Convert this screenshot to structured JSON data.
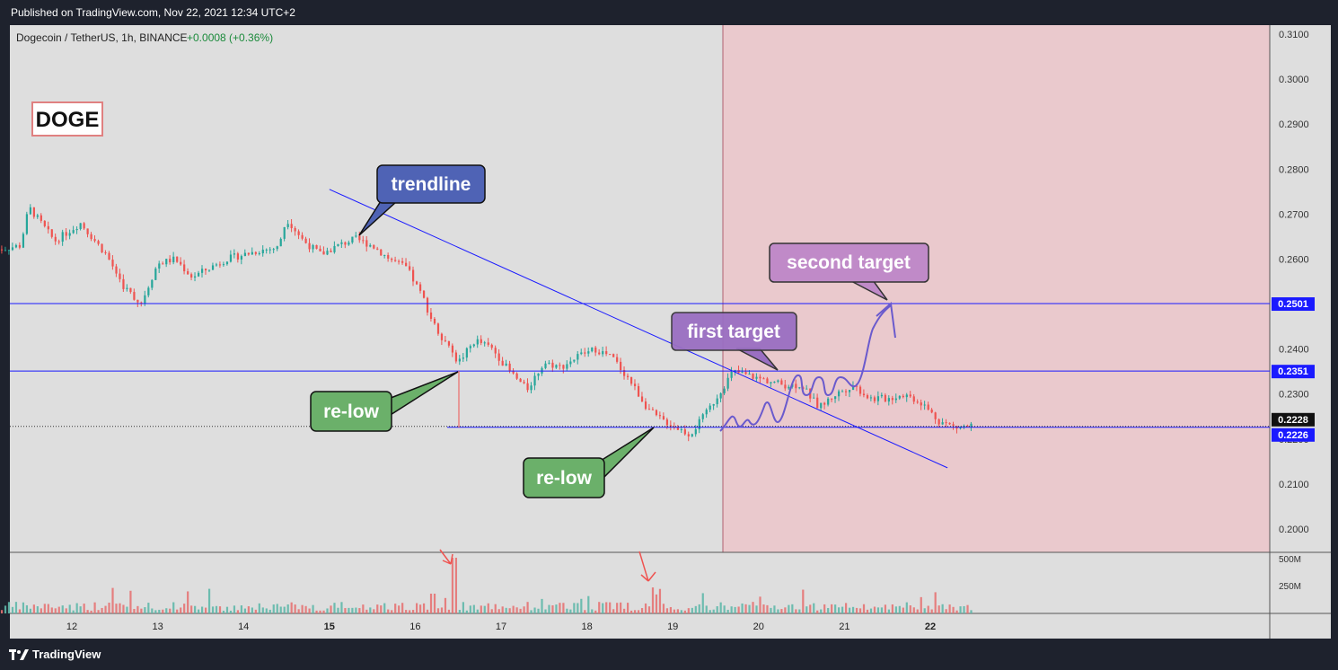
{
  "header": {
    "published": "Published on TradingView.com, Nov 22, 2021 12:34 UTC+2"
  },
  "footer": {
    "brand": "TradingView"
  },
  "legend": {
    "symbol": "Dogecoin / TetherUS, 1h, BINANCE",
    "change": "+0.0008 (+0.36%)"
  },
  "colors": {
    "up": "#26a69a",
    "down": "#ef5350",
    "line": "#1a1aff",
    "zone": "#f4b8c0",
    "bg": "#dedede"
  },
  "chart_data": {
    "type": "candlestick",
    "ylim": [
      0.195,
      0.3125
    ],
    "yticks": [
      "0.3100",
      "0.3000",
      "0.2900",
      "0.2800",
      "0.2700",
      "0.2600",
      "0.2500",
      "0.2400",
      "0.2300",
      "0.2200",
      "0.2100",
      "0.2000"
    ],
    "xticks": [
      {
        "label": "12",
        "day": 12
      },
      {
        "label": "13",
        "day": 13
      },
      {
        "label": "14",
        "day": 14
      },
      {
        "label": "15",
        "day": 15
      },
      {
        "label": "16",
        "day": 16
      },
      {
        "label": "17",
        "day": 17
      },
      {
        "label": "18",
        "day": 18
      },
      {
        "label": "19",
        "day": 19
      },
      {
        "label": "20",
        "day": 20
      },
      {
        "label": "21",
        "day": 21
      },
      {
        "label": "22",
        "day": 22
      }
    ],
    "bold_days": [
      15,
      22
    ],
    "volume_ticks": [
      "500M",
      "250M"
    ],
    "price_path": [
      [
        11.1,
        0.262
      ],
      [
        11.4,
        0.263
      ],
      [
        11.5,
        0.2715
      ],
      [
        11.8,
        0.264
      ],
      [
        12.1,
        0.268
      ],
      [
        12.4,
        0.261
      ],
      [
        12.6,
        0.254
      ],
      [
        12.8,
        0.25
      ],
      [
        13.0,
        0.259
      ],
      [
        13.2,
        0.26
      ],
      [
        13.4,
        0.256
      ],
      [
        13.6,
        0.258
      ],
      [
        13.8,
        0.26
      ],
      [
        14.0,
        0.261
      ],
      [
        14.2,
        0.262
      ],
      [
        14.4,
        0.2625
      ],
      [
        14.5,
        0.269
      ],
      [
        14.7,
        0.264
      ],
      [
        14.9,
        0.261
      ],
      [
        15.1,
        0.263
      ],
      [
        15.3,
        0.2645
      ],
      [
        15.5,
        0.263
      ],
      [
        15.7,
        0.26
      ],
      [
        15.9,
        0.258
      ],
      [
        16.1,
        0.251
      ],
      [
        16.2,
        0.246
      ],
      [
        16.4,
        0.24
      ],
      [
        16.5,
        0.237
      ],
      [
        16.7,
        0.242
      ],
      [
        16.9,
        0.24
      ],
      [
        17.1,
        0.235
      ],
      [
        17.3,
        0.231
      ],
      [
        17.5,
        0.237
      ],
      [
        17.7,
        0.236
      ],
      [
        17.9,
        0.2385
      ],
      [
        18.1,
        0.24
      ],
      [
        18.3,
        0.238
      ],
      [
        18.5,
        0.233
      ],
      [
        18.7,
        0.227
      ],
      [
        18.8,
        0.225
      ],
      [
        19.0,
        0.223
      ],
      [
        19.2,
        0.221
      ],
      [
        19.4,
        0.226
      ],
      [
        19.5,
        0.229
      ],
      [
        19.7,
        0.235
      ],
      [
        19.9,
        0.234
      ],
      [
        20.1,
        0.233
      ],
      [
        20.3,
        0.232
      ],
      [
        20.5,
        0.232
      ],
      [
        20.7,
        0.227
      ],
      [
        20.9,
        0.23
      ],
      [
        21.1,
        0.232
      ],
      [
        21.3,
        0.229
      ],
      [
        21.5,
        0.229
      ],
      [
        21.7,
        0.23
      ],
      [
        21.9,
        0.228
      ],
      [
        22.1,
        0.224
      ],
      [
        22.3,
        0.2225
      ],
      [
        22.5,
        0.223
      ]
    ],
    "horizontal_levels": [
      {
        "value": 0.2501,
        "label": "0.2501"
      },
      {
        "value": 0.2351,
        "label": "0.2351"
      }
    ],
    "support_level": 0.2226,
    "last_price": {
      "value": 0.2228,
      "label": "0.2228"
    },
    "support_label": "0.2226",
    "trendline": {
      "from": [
        15.0,
        0.2755
      ],
      "to": [
        22.2,
        0.2136
      ]
    },
    "target_zone_start_day": 19.55,
    "annotations": {
      "doge": "DOGE",
      "trendline": "trendline",
      "relow": "re-low",
      "first_target": "first target",
      "second_target": "second target"
    }
  }
}
